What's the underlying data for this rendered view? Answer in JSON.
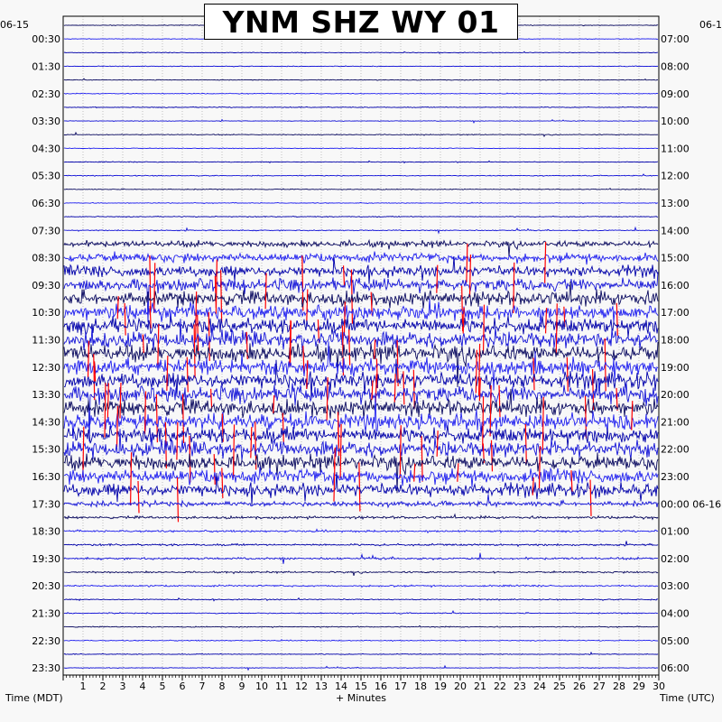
{
  "chart_data": {
    "type": "line",
    "title": "YNM SHZ WY 01",
    "xlabel": "+ Minutes",
    "ylabel_left": "Time (MDT)",
    "ylabel_right": "Time (UTC)",
    "corner_left": "06-15",
    "corner_right": "06-1",
    "x_ticks": [
      "1",
      "2",
      "3",
      "4",
      "5",
      "6",
      "7",
      "8",
      "9",
      "10",
      "11",
      "12",
      "13",
      "14",
      "15",
      "16",
      "17",
      "18",
      "19",
      "20",
      "21",
      "22",
      "23",
      "24",
      "25",
      "26",
      "27",
      "28",
      "29",
      "30"
    ],
    "xlim": [
      0,
      30
    ],
    "left_labels": [
      "00:30",
      "01:30",
      "02:30",
      "03:30",
      "04:30",
      "05:30",
      "06:30",
      "07:30",
      "08:30",
      "09:30",
      "10:30",
      "11:30",
      "12:30",
      "13:30",
      "14:30",
      "15:30",
      "16:30",
      "17:30",
      "18:30",
      "19:30",
      "20:30",
      "21:30",
      "22:30",
      "23:30"
    ],
    "right_labels": [
      "07:00",
      "08:00",
      "09:00",
      "10:00",
      "11:00",
      "12:00",
      "13:00",
      "14:00",
      "15:00",
      "16:00",
      "17:00",
      "18:00",
      "19:00",
      "20:00",
      "21:00",
      "22:00",
      "23:00",
      "00:00 06-16",
      "01:00",
      "02:00",
      "03:00",
      "04:00",
      "05:00",
      "06:00"
    ],
    "trace_count": 48,
    "series_colors": [
      "#0a0a60",
      "#2020f0",
      "#0000aa",
      "#1414d8"
    ],
    "clip_color": "#ff0000",
    "activity": [
      0.25,
      0.25,
      0.25,
      0.25,
      0.25,
      0.25,
      0.3,
      0.25,
      0.3,
      0.25,
      0.3,
      0.3,
      0.3,
      0.3,
      0.35,
      0.4,
      2.2,
      3.2,
      4,
      4.6,
      5,
      5.2,
      5.4,
      5.6,
      5.8,
      5.8,
      5.8,
      5.8,
      5.6,
      5.6,
      5.4,
      5.4,
      5.2,
      5,
      4.8,
      1.8,
      0.9,
      0.7,
      0.7,
      0.8,
      0.6,
      0.6,
      0.4,
      0.4,
      0.35,
      0.35,
      0.3,
      0.3
    ]
  }
}
